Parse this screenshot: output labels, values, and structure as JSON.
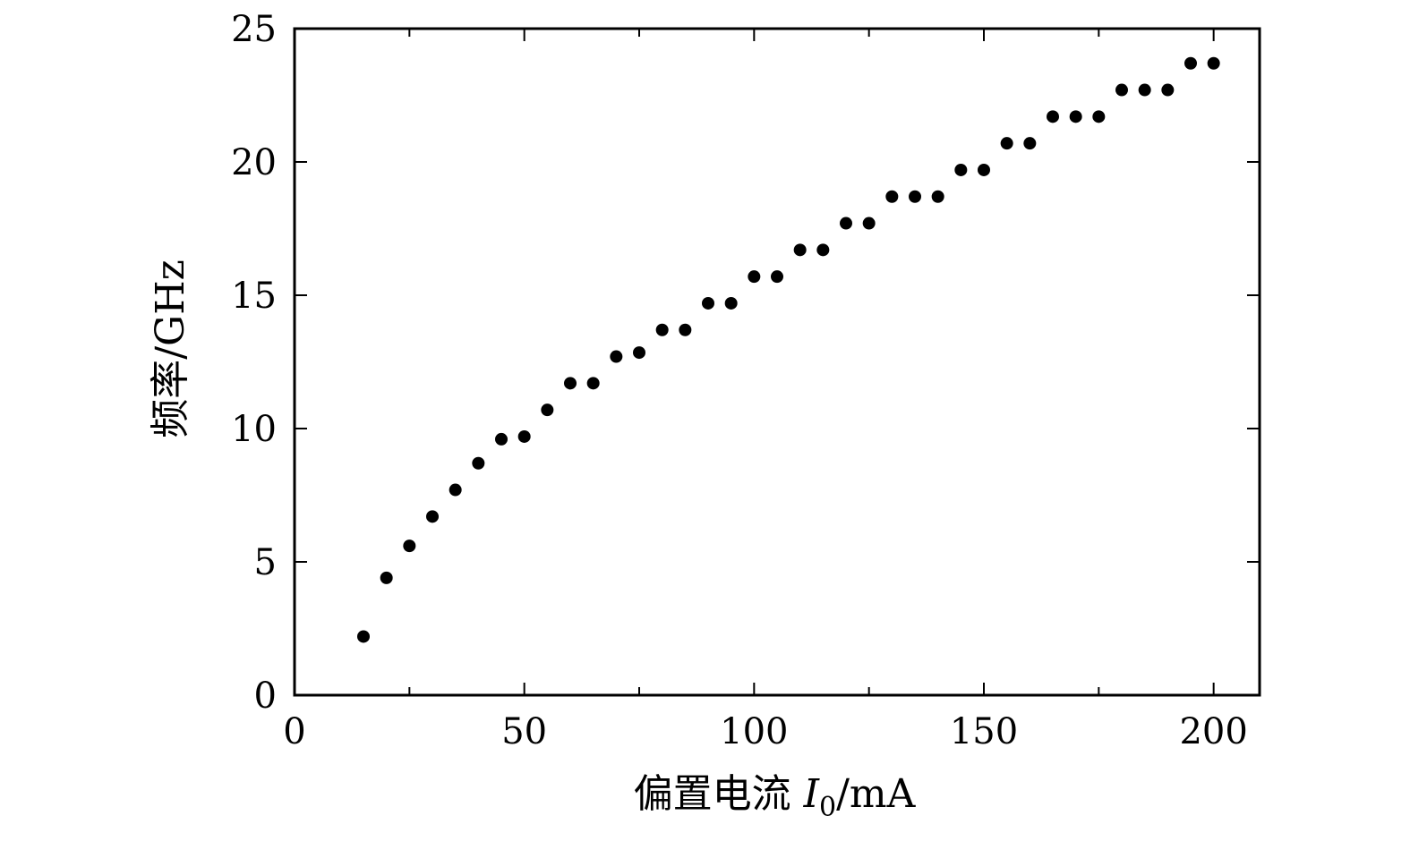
{
  "chart_data": {
    "type": "scatter",
    "xlabel_main": "偏置电流",
    "xlabel_var": "I",
    "xlabel_sub": "0",
    "xlabel_unit": "/mA",
    "ylabel": "频率/GHz",
    "xlim": [
      0,
      210
    ],
    "ylim": [
      0,
      25
    ],
    "xticks": [
      0,
      50,
      100,
      150,
      200
    ],
    "yticks": [
      0,
      5,
      10,
      15,
      20,
      25
    ],
    "xtick_labels": [
      "0",
      "50",
      "100",
      "150",
      "200"
    ],
    "ytick_labels": [
      "0",
      "5",
      "10",
      "15",
      "20",
      "25"
    ],
    "grid": false,
    "marker_color": "#000000",
    "points": [
      {
        "x": 15,
        "y": 2.2
      },
      {
        "x": 20,
        "y": 4.4
      },
      {
        "x": 25,
        "y": 5.6
      },
      {
        "x": 30,
        "y": 6.7
      },
      {
        "x": 35,
        "y": 7.7
      },
      {
        "x": 40,
        "y": 8.7
      },
      {
        "x": 45,
        "y": 9.6
      },
      {
        "x": 50,
        "y": 9.7
      },
      {
        "x": 55,
        "y": 10.7
      },
      {
        "x": 60,
        "y": 11.7
      },
      {
        "x": 65,
        "y": 11.7
      },
      {
        "x": 70,
        "y": 12.7
      },
      {
        "x": 75,
        "y": 12.85
      },
      {
        "x": 80,
        "y": 13.7
      },
      {
        "x": 85,
        "y": 13.7
      },
      {
        "x": 90,
        "y": 14.7
      },
      {
        "x": 95,
        "y": 14.7
      },
      {
        "x": 100,
        "y": 15.7
      },
      {
        "x": 105,
        "y": 15.7
      },
      {
        "x": 110,
        "y": 16.7
      },
      {
        "x": 115,
        "y": 16.7
      },
      {
        "x": 120,
        "y": 17.7
      },
      {
        "x": 125,
        "y": 17.7
      },
      {
        "x": 130,
        "y": 18.7
      },
      {
        "x": 135,
        "y": 18.7
      },
      {
        "x": 140,
        "y": 18.7
      },
      {
        "x": 145,
        "y": 19.7
      },
      {
        "x": 150,
        "y": 19.7
      },
      {
        "x": 155,
        "y": 20.7
      },
      {
        "x": 160,
        "y": 20.7
      },
      {
        "x": 165,
        "y": 21.7
      },
      {
        "x": 170,
        "y": 21.7
      },
      {
        "x": 175,
        "y": 21.7
      },
      {
        "x": 180,
        "y": 22.7
      },
      {
        "x": 185,
        "y": 22.7
      },
      {
        "x": 190,
        "y": 22.7
      },
      {
        "x": 195,
        "y": 23.7
      },
      {
        "x": 200,
        "y": 23.7
      }
    ]
  }
}
